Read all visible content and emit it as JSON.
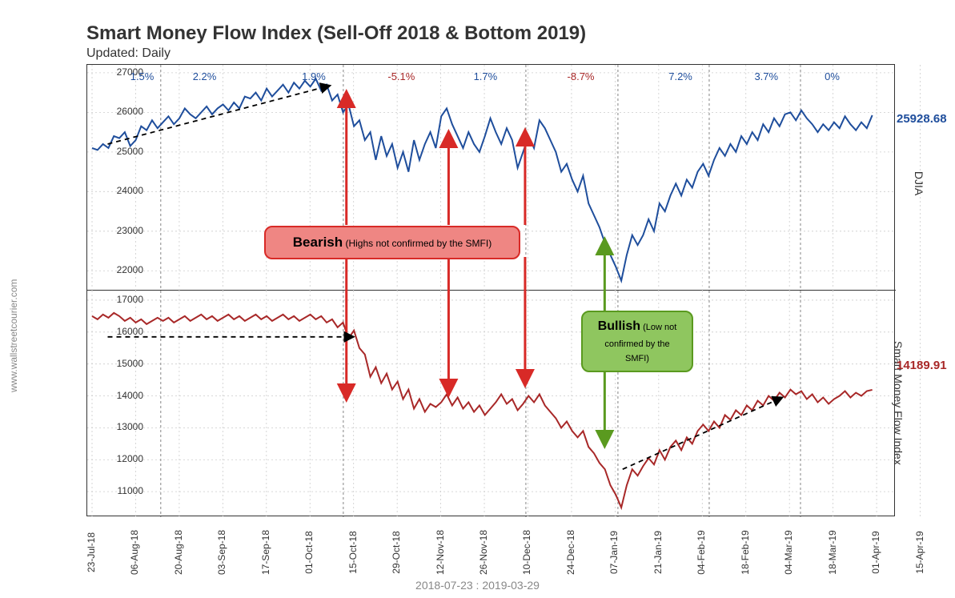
{
  "title": "Smart Money Flow Index (Sell-Off 2018 & Bottom 2019)",
  "subtitle": "Updated: Daily",
  "watermark": "www.wallstreetcourier.com",
  "x_range_label": "2018-07-23 : 2019-03-29",
  "panel_top": {
    "label_right": "DJIA",
    "color": "#1f4e9c",
    "end_value": "25928.68",
    "ylim": [
      21500,
      27200
    ],
    "yticks": [
      22000,
      23000,
      24000,
      25000,
      26000,
      27000
    ]
  },
  "panel_bottom": {
    "label_right": "Smart Money Flow Index",
    "color": "#a82828",
    "end_value": "14189.91",
    "ylim": [
      10200,
      17300
    ],
    "yticks": [
      11000,
      12000,
      13000,
      14000,
      15000,
      16000,
      17000
    ]
  },
  "pct_labels": [
    {
      "text": "1.5%",
      "color": "#1f4e9c",
      "x": 0.05
    },
    {
      "text": "2.2%",
      "color": "#1f4e9c",
      "x": 0.13
    },
    {
      "text": "1.9%",
      "color": "#1f4e9c",
      "x": 0.27
    },
    {
      "text": "-5.1%",
      "color": "#a82828",
      "x": 0.38
    },
    {
      "text": "1.7%",
      "color": "#1f4e9c",
      "x": 0.49
    },
    {
      "text": "-8.7%",
      "color": "#a82828",
      "x": 0.61
    },
    {
      "text": "7.2%",
      "color": "#1f4e9c",
      "x": 0.74
    },
    {
      "text": "3.7%",
      "color": "#1f4e9c",
      "x": 0.85
    },
    {
      "text": "0%",
      "color": "#1f4e9c",
      "x": 0.94
    }
  ],
  "x_ticks": [
    "23-Jul-18",
    "06-Aug-18",
    "20-Aug-18",
    "03-Sep-18",
    "17-Sep-18",
    "01-Oct-18",
    "15-Oct-18",
    "29-Oct-18",
    "12-Nov-18",
    "26-Nov-18",
    "10-Dec-18",
    "24-Dec-18",
    "07-Jan-19",
    "21-Jan-19",
    "04-Feb-19",
    "18-Feb-19",
    "04-Mar-19",
    "18-Mar-19",
    "01-Apr-19",
    "15-Apr-19"
  ],
  "x_data_span": 17.9,
  "vlines": [
    0.088,
    0.322,
    0.556,
    0.674,
    0.791,
    0.908
  ],
  "djia": [
    25100,
    25050,
    25200,
    25100,
    25400,
    25350,
    25500,
    25150,
    25300,
    25650,
    25550,
    25800,
    25600,
    25750,
    25900,
    25700,
    25850,
    26100,
    25950,
    25850,
    26000,
    26150,
    25950,
    26100,
    26200,
    26050,
    26250,
    26100,
    26400,
    26350,
    26500,
    26300,
    26600,
    26400,
    26550,
    26700,
    26500,
    26750,
    26600,
    26800,
    26650,
    26850,
    26550,
    26700,
    26300,
    26450,
    26000,
    26200,
    25650,
    25800,
    25300,
    25500,
    24800,
    25400,
    24900,
    25200,
    24600,
    25000,
    24500,
    25300,
    24800,
    25200,
    25500,
    25100,
    25900,
    26100,
    25700,
    25400,
    25100,
    25500,
    25200,
    25000,
    25400,
    25850,
    25500,
    25200,
    25600,
    25300,
    24600,
    25000,
    25400,
    25100,
    25800,
    25600,
    25300,
    25000,
    24500,
    24700,
    24300,
    24000,
    24400,
    23700,
    23400,
    23100,
    22700,
    22400,
    22100,
    21750,
    22400,
    22900,
    22650,
    22900,
    23300,
    23000,
    23700,
    23500,
    23900,
    24200,
    23900,
    24300,
    24100,
    24500,
    24700,
    24400,
    24800,
    25100,
    24900,
    25200,
    25000,
    25400,
    25200,
    25500,
    25300,
    25700,
    25500,
    25850,
    25650,
    25950,
    26000,
    25800,
    26050,
    25850,
    25700,
    25500,
    25700,
    25550,
    25750,
    25600,
    25900,
    25700,
    25550,
    25750,
    25600,
    25928
  ],
  "smfi": [
    16500,
    16400,
    16550,
    16450,
    16600,
    16500,
    16350,
    16450,
    16300,
    16400,
    16250,
    16350,
    16450,
    16350,
    16450,
    16300,
    16400,
    16500,
    16350,
    16450,
    16550,
    16400,
    16500,
    16350,
    16450,
    16550,
    16400,
    16500,
    16350,
    16450,
    16550,
    16400,
    16500,
    16350,
    16450,
    16550,
    16400,
    16500,
    16350,
    16450,
    16550,
    16400,
    16500,
    16300,
    16400,
    16150,
    16300,
    15800,
    16050,
    15500,
    15300,
    14600,
    14900,
    14400,
    14700,
    14200,
    14450,
    13900,
    14200,
    13600,
    13900,
    13500,
    13750,
    13650,
    13800,
    14050,
    13700,
    13950,
    13600,
    13800,
    13500,
    13700,
    13400,
    13600,
    13800,
    14050,
    13750,
    13900,
    13550,
    13750,
    14000,
    13800,
    14050,
    13700,
    13500,
    13300,
    13000,
    13200,
    12900,
    12700,
    12900,
    12400,
    12200,
    11900,
    11700,
    11200,
    10900,
    10500,
    11200,
    11700,
    11500,
    11800,
    12050,
    11850,
    12300,
    12000,
    12400,
    12600,
    12300,
    12700,
    12500,
    12900,
    13100,
    12900,
    13200,
    13000,
    13400,
    13250,
    13550,
    13400,
    13700,
    13550,
    13850,
    13700,
    14000,
    13850,
    14100,
    13950,
    14200,
    14050,
    14150,
    13900,
    14050,
    13800,
    13950,
    13750,
    13900,
    14000,
    14150,
    13950,
    14100,
    14000,
    14150,
    14190
  ],
  "callouts": {
    "bearish": {
      "strong": "Bearish",
      "text": " (Highs not confirmed by the SMFI)"
    },
    "bullish": {
      "strong": "Bullish",
      "text": " (Low not confirmed by the SMFI)"
    }
  },
  "arrows": {
    "red_color": "#d82a27",
    "green_color": "#5a9a1f",
    "positions_red": [
      0.326,
      0.457,
      0.555
    ],
    "position_green": 0.657
  },
  "trend_lines": [
    {
      "panel": "top",
      "x1": 0.02,
      "y1": 25200,
      "x2": 0.3,
      "y2": 26650,
      "arrow": true
    },
    {
      "panel": "bottom",
      "x1": 0.02,
      "y1": 15850,
      "x2": 0.33,
      "y2": 15850,
      "arrow": true
    },
    {
      "panel": "bottom",
      "x1": 0.68,
      "y1": 11700,
      "x2": 0.88,
      "y2": 13900,
      "arrow": true
    }
  ],
  "background_color": "#ffffff",
  "grid_color": "#cccccc"
}
